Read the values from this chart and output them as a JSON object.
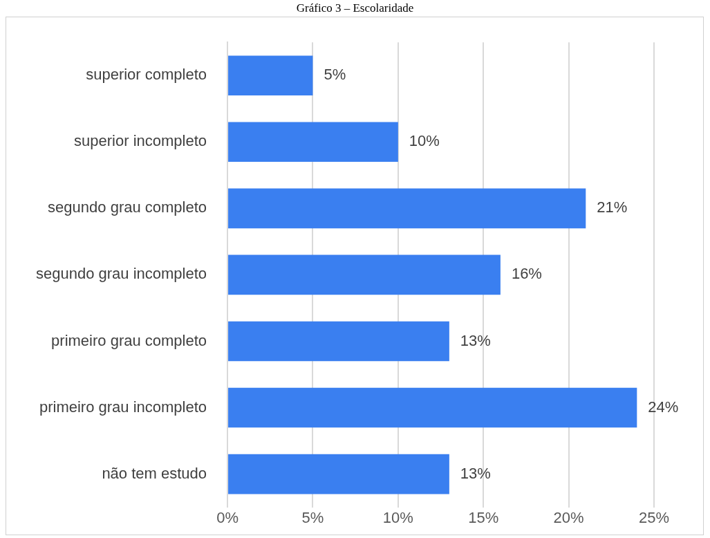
{
  "chart_data": {
    "type": "bar",
    "orientation": "horizontal",
    "title": "Gráfico 3 – Escolaridade",
    "categories": [
      "superior completo",
      "superior incompleto",
      "segundo grau completo",
      "segundo grau incompleto",
      "primeiro grau completo",
      "primeiro grau incompleto",
      "não tem estudo"
    ],
    "values": [
      5,
      10,
      21,
      16,
      13,
      24,
      13
    ],
    "color": "#3a7ff0",
    "xlim": [
      0,
      25
    ],
    "xticks": [
      {
        "value": 0,
        "label": "0%"
      },
      {
        "value": 5,
        "label": "5%"
      },
      {
        "value": 10,
        "label": "10%"
      },
      {
        "value": 15,
        "label": "15%"
      },
      {
        "value": 20,
        "label": "20%"
      },
      {
        "value": 25,
        "label": "25%"
      }
    ],
    "value_labels": [
      "5%",
      "10%",
      "21%",
      "16%",
      "13%",
      "24%",
      "13%"
    ],
    "grid": "x",
    "legend": false
  }
}
